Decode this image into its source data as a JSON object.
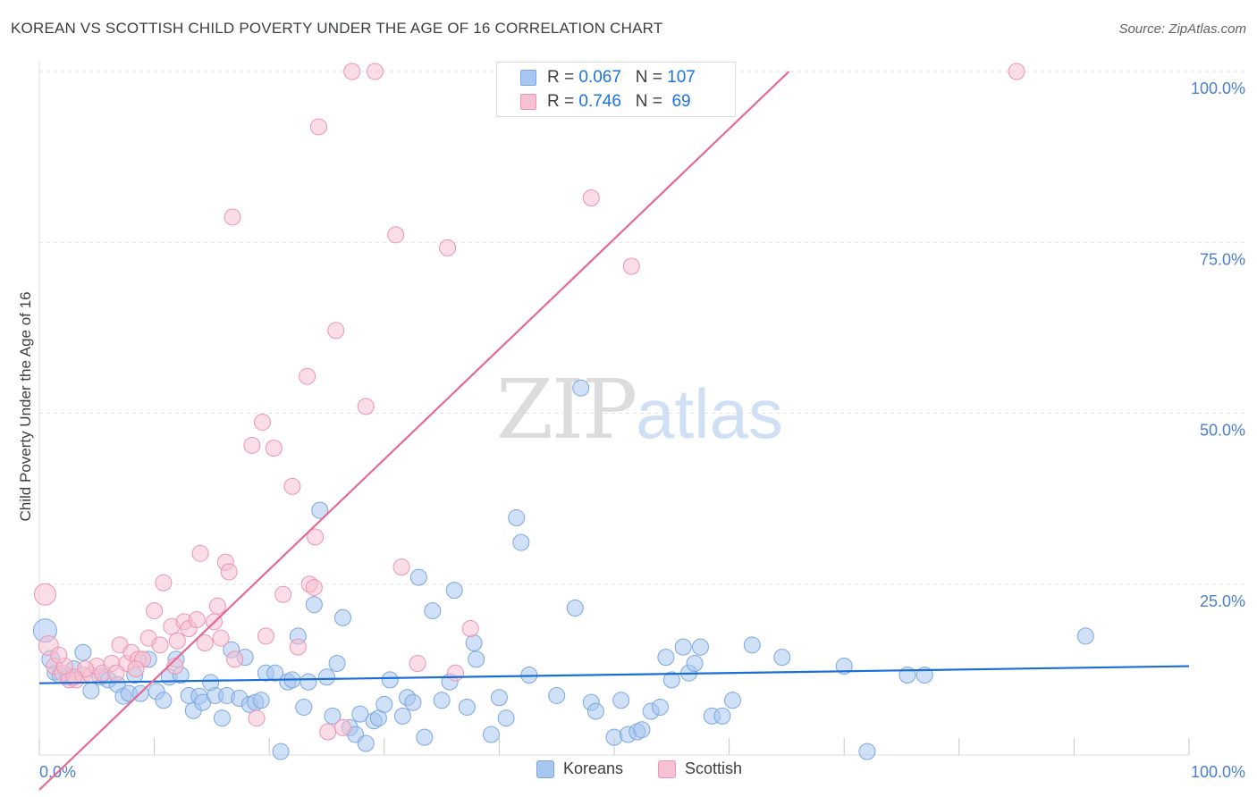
{
  "header": {
    "title": "KOREAN VS SCOTTISH CHILD POVERTY UNDER THE AGE OF 16 CORRELATION CHART",
    "source": "Source: ZipAtlas.com"
  },
  "watermark": {
    "zip": "ZIP",
    "atlas": "atlas"
  },
  "stats": {
    "rows": [
      {
        "r_label": "R =",
        "r_value": "0.067",
        "n_label": "N =",
        "n_value": "107",
        "color": "#a8c7f0",
        "border": "#7ba7e0"
      },
      {
        "r_label": "R =",
        "r_value": "0.746",
        "n_label": "N =",
        "n_value": " 69",
        "color": "#f6c1d2",
        "border": "#ec94b2"
      }
    ]
  },
  "legend": {
    "items": [
      {
        "label": "Koreans",
        "color": "#a8c7f0",
        "border": "#7ba7e0"
      },
      {
        "label": "Scottish",
        "color": "#f6c1d2",
        "border": "#ec94b2"
      }
    ]
  },
  "chart_data": {
    "type": "scatter",
    "title": "KOREAN VS SCOTTISH CHILD POVERTY UNDER THE AGE OF 16 CORRELATION CHART",
    "xlabel": "",
    "ylabel": "Child Poverty Under the Age of 16",
    "xlim": [
      0,
      100
    ],
    "ylim": [
      0,
      100
    ],
    "x_tick_labels": [
      "0.0%",
      "100.0%"
    ],
    "y_tick_labels": [
      "25.0%",
      "50.0%",
      "75.0%",
      "100.0%"
    ],
    "y_ticks": [
      25,
      50,
      75,
      100
    ],
    "grid": true,
    "legend_position": "bottom-center",
    "series": [
      {
        "name": "Koreans",
        "color": "#a8c7f0",
        "stroke": "#7ba7e0",
        "trend_color": "#1a6fd4",
        "trend": {
          "x": [
            0,
            100
          ],
          "y": [
            10.5,
            13.0
          ]
        },
        "points": [
          [
            0.5,
            18.2
          ],
          [
            1.0,
            14.0
          ],
          [
            1.3,
            12.0
          ],
          [
            1.8,
            11.7
          ],
          [
            2.5,
            11.4
          ],
          [
            3.0,
            12.6
          ],
          [
            3.8,
            15.0
          ],
          [
            4.5,
            9.4
          ],
          [
            5.3,
            11.4
          ],
          [
            6.0,
            11.0
          ],
          [
            6.8,
            10.3
          ],
          [
            7.3,
            8.6
          ],
          [
            7.8,
            9.0
          ],
          [
            8.3,
            11.7
          ],
          [
            8.8,
            9.0
          ],
          [
            9.5,
            14.0
          ],
          [
            10.2,
            9.3
          ],
          [
            10.8,
            8.0
          ],
          [
            11.3,
            11.4
          ],
          [
            11.9,
            14.0
          ],
          [
            12.3,
            11.7
          ],
          [
            13.0,
            8.7
          ],
          [
            13.4,
            6.5
          ],
          [
            13.9,
            8.6
          ],
          [
            14.2,
            7.7
          ],
          [
            14.9,
            10.6
          ],
          [
            15.3,
            8.7
          ],
          [
            15.9,
            5.4
          ],
          [
            16.3,
            8.7
          ],
          [
            16.7,
            15.4
          ],
          [
            17.4,
            8.3
          ],
          [
            17.9,
            14.3
          ],
          [
            18.3,
            7.4
          ],
          [
            18.8,
            7.7
          ],
          [
            19.3,
            8.0
          ],
          [
            19.7,
            12.0
          ],
          [
            20.5,
            12.0
          ],
          [
            21.0,
            0.5
          ],
          [
            21.6,
            10.7
          ],
          [
            22.0,
            11.0
          ],
          [
            22.5,
            17.4
          ],
          [
            23.0,
            7.0
          ],
          [
            23.4,
            10.7
          ],
          [
            23.9,
            22.0
          ],
          [
            24.4,
            35.8
          ],
          [
            25.0,
            11.4
          ],
          [
            25.5,
            5.7
          ],
          [
            25.9,
            13.4
          ],
          [
            26.4,
            20.1
          ],
          [
            27.0,
            4.0
          ],
          [
            27.5,
            3.0
          ],
          [
            27.9,
            6.0
          ],
          [
            28.4,
            1.7
          ],
          [
            29.1,
            5.0
          ],
          [
            29.5,
            5.4
          ],
          [
            30.0,
            7.4
          ],
          [
            30.5,
            11.0
          ],
          [
            31.6,
            5.7
          ],
          [
            32.0,
            8.4
          ],
          [
            32.5,
            7.7
          ],
          [
            33.0,
            26.0
          ],
          [
            33.5,
            2.6
          ],
          [
            34.2,
            21.1
          ],
          [
            35.0,
            8.0
          ],
          [
            35.7,
            10.7
          ],
          [
            36.1,
            24.1
          ],
          [
            37.2,
            7.0
          ],
          [
            37.8,
            16.4
          ],
          [
            38.0,
            14.0
          ],
          [
            39.3,
            3.0
          ],
          [
            40.6,
            5.4
          ],
          [
            41.5,
            34.7
          ],
          [
            41.9,
            31.1
          ],
          [
            42.6,
            11.7
          ],
          [
            45.0,
            8.7
          ],
          [
            46.6,
            21.5
          ],
          [
            47.1,
            53.7
          ],
          [
            48.0,
            7.7
          ],
          [
            48.4,
            6.4
          ],
          [
            50.0,
            2.6
          ],
          [
            50.6,
            8.0
          ],
          [
            51.2,
            3.0
          ],
          [
            52.0,
            3.4
          ],
          [
            52.4,
            3.7
          ],
          [
            53.2,
            6.4
          ],
          [
            54.0,
            7.0
          ],
          [
            54.5,
            14.3
          ],
          [
            55.0,
            11.0
          ],
          [
            56.0,
            15.8
          ],
          [
            56.5,
            12.0
          ],
          [
            57.0,
            13.4
          ],
          [
            57.5,
            15.8
          ],
          [
            58.5,
            5.7
          ],
          [
            59.4,
            5.7
          ],
          [
            60.3,
            8.0
          ],
          [
            62.0,
            16.1
          ],
          [
            64.6,
            14.3
          ],
          [
            70.0,
            13.0
          ],
          [
            72.0,
            0.5
          ],
          [
            75.5,
            11.7
          ],
          [
            77.0,
            11.7
          ],
          [
            91.0,
            17.4
          ],
          [
            40.0,
            8.4
          ]
        ],
        "sizes": {
          "0": 26,
          "1": 20,
          "2": 16
        }
      },
      {
        "name": "Scottish",
        "color": "#f6c1d2",
        "stroke": "#ec94b2",
        "trend_color": "#e26a93",
        "trend": {
          "x": [
            0,
            65.2
          ],
          "y": [
            -5.1,
            100
          ]
        },
        "points": [
          [
            0.5,
            23.5
          ],
          [
            0.8,
            16.0
          ],
          [
            1.3,
            13.0
          ],
          [
            2.0,
            12.0
          ],
          [
            2.6,
            11.0
          ],
          [
            3.2,
            11.0
          ],
          [
            3.8,
            11.7
          ],
          [
            4.5,
            11.7
          ],
          [
            5.0,
            13.0
          ],
          [
            5.5,
            12.0
          ],
          [
            6.3,
            13.4
          ],
          [
            7.0,
            16.1
          ],
          [
            7.6,
            13.4
          ],
          [
            8.0,
            15.0
          ],
          [
            8.6,
            14.0
          ],
          [
            9.5,
            17.1
          ],
          [
            10.0,
            21.1
          ],
          [
            10.8,
            25.2
          ],
          [
            11.8,
            13.0
          ],
          [
            11.5,
            18.8
          ],
          [
            12.6,
            19.5
          ],
          [
            13.0,
            18.5
          ],
          [
            14.0,
            29.5
          ],
          [
            15.2,
            19.5
          ],
          [
            15.5,
            21.8
          ],
          [
            16.2,
            28.2
          ],
          [
            16.5,
            26.8
          ],
          [
            16.8,
            78.7
          ],
          [
            18.5,
            45.3
          ],
          [
            18.9,
            5.4
          ],
          [
            19.4,
            48.7
          ],
          [
            19.7,
            17.4
          ],
          [
            20.4,
            44.9
          ],
          [
            21.2,
            23.5
          ],
          [
            22.0,
            39.3
          ],
          [
            22.5,
            15.8
          ],
          [
            23.3,
            55.4
          ],
          [
            23.5,
            25.0
          ],
          [
            23.9,
            24.5
          ],
          [
            24.0,
            31.9
          ],
          [
            24.3,
            91.9
          ],
          [
            25.1,
            3.4
          ],
          [
            25.8,
            62.1
          ],
          [
            26.4,
            4.0
          ],
          [
            27.2,
            100.0
          ],
          [
            28.4,
            51.0
          ],
          [
            29.2,
            100.0
          ],
          [
            31.0,
            76.1
          ],
          [
            31.5,
            27.5
          ],
          [
            32.9,
            13.4
          ],
          [
            35.5,
            74.2
          ],
          [
            36.2,
            12.0
          ],
          [
            37.5,
            18.5
          ],
          [
            48.0,
            81.5
          ],
          [
            51.5,
            71.5
          ],
          [
            85.0,
            100.0
          ],
          [
            9.0,
            14.0
          ],
          [
            6.7,
            12.0
          ],
          [
            4.0,
            12.6
          ],
          [
            3.0,
            11.4
          ],
          [
            2.2,
            13.0
          ],
          [
            1.7,
            14.6
          ],
          [
            10.5,
            16.1
          ],
          [
            12.0,
            16.7
          ],
          [
            13.7,
            19.8
          ],
          [
            14.4,
            16.4
          ],
          [
            15.8,
            17.1
          ],
          [
            17.0,
            14.0
          ],
          [
            8.4,
            12.6
          ]
        ],
        "sizes": {
          "0": 24,
          "1": 22
        }
      }
    ]
  }
}
